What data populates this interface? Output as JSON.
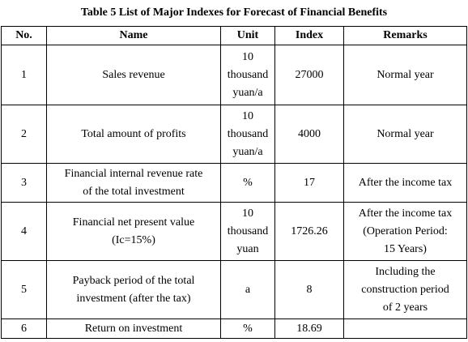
{
  "table": {
    "caption": "Table 5 List of Major Indexes for Forecast of Financial Benefits",
    "headers": [
      "No.",
      "Name",
      "Unit",
      "Index",
      "Remarks"
    ],
    "rows": [
      {
        "no": "1",
        "name": [
          "Sales revenue"
        ],
        "unit": [
          "10",
          "thousand",
          "yuan/a"
        ],
        "index": "27000",
        "remarks": [
          "Normal year"
        ]
      },
      {
        "no": "2",
        "name": [
          "Total amount of profits"
        ],
        "unit": [
          "10",
          "thousand",
          "yuan/a"
        ],
        "index": "4000",
        "remarks": [
          "Normal year"
        ]
      },
      {
        "no": "3",
        "name": [
          "Financial internal revenue rate",
          "of the total investment"
        ],
        "unit": [
          "%"
        ],
        "index": "17",
        "remarks": [
          "After the income tax"
        ]
      },
      {
        "no": "4",
        "name": [
          "Financial net present value",
          "(Ic=15%)"
        ],
        "unit": [
          "10",
          "thousand",
          "yuan"
        ],
        "index": "1726.26",
        "remarks": [
          "After the income tax",
          "(Operation Period:",
          "15 Years)"
        ]
      },
      {
        "no": "5",
        "name": [
          "Payback period of the total",
          "investment (after the tax)"
        ],
        "unit": [
          "a"
        ],
        "index": "8",
        "remarks": [
          "Including the",
          "construction period",
          "of 2 years"
        ]
      },
      {
        "no": "6",
        "name": [
          "Return on investment"
        ],
        "unit": [
          "%"
        ],
        "index": "18.69",
        "remarks": []
      }
    ]
  }
}
